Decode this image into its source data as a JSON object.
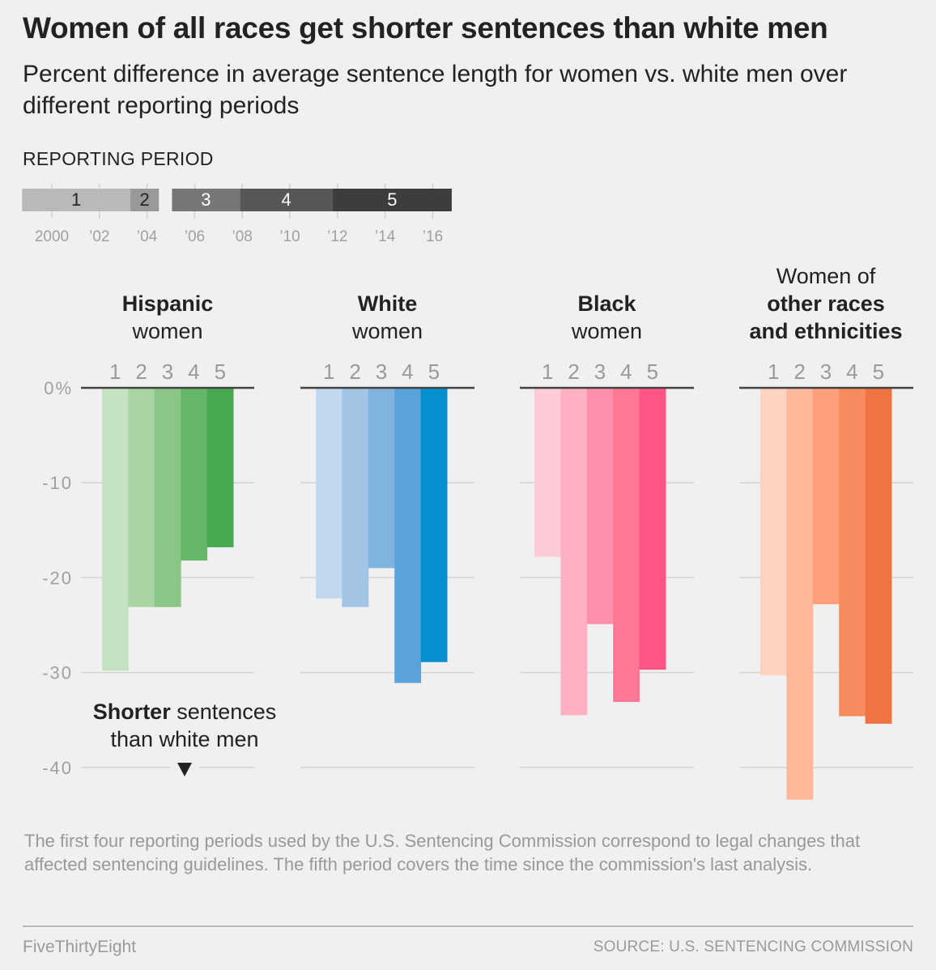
{
  "header": {
    "title": "Women of all races get shorter sentences than white men",
    "subtitle": "Percent difference in average sentence length for women vs. white men over different reporting periods"
  },
  "legend": {
    "title": "REPORTING PERIOD",
    "periods": [
      {
        "label": "1",
        "start": 1998.75,
        "end": 2003.3,
        "color": "#b9b9b9",
        "text_color": "#222222"
      },
      {
        "label": "2",
        "start": 2003.3,
        "end": 2004.5,
        "color": "#999999",
        "text_color": "#222222"
      },
      {
        "label": "3",
        "start": 2005.05,
        "end": 2007.9,
        "color": "#767676",
        "text_color": "#ffffff"
      },
      {
        "label": "4",
        "start": 2007.9,
        "end": 2011.8,
        "color": "#575757",
        "text_color": "#ffffff"
      },
      {
        "label": "5",
        "start": 2011.8,
        "end": 2016.8,
        "color": "#3d3d3d",
        "text_color": "#ffffff"
      }
    ],
    "year_ticks": [
      {
        "year": 2000,
        "label": "2000"
      },
      {
        "year": 2002,
        "label": "’02"
      },
      {
        "year": 2004,
        "label": "’04"
      },
      {
        "year": 2006,
        "label": "’06"
      },
      {
        "year": 2008,
        "label": "’08"
      },
      {
        "year": 2010,
        "label": "’10"
      },
      {
        "year": 2012,
        "label": "’12"
      },
      {
        "year": 2014,
        "label": "’14"
      },
      {
        "year": 2016,
        "label": "’16"
      }
    ]
  },
  "chart_data": {
    "type": "bar",
    "title": "Women of all races get shorter sentences than white men",
    "subtitle": "Percent difference in average sentence length for women vs. white men over different reporting periods",
    "xlabel": "Reporting period",
    "ylabel": "Percent difference",
    "categories": [
      "1",
      "2",
      "3",
      "4",
      "5"
    ],
    "ylim": [
      -40,
      0
    ],
    "yticks": [
      {
        "value": 0,
        "label": "0%"
      },
      {
        "value": -10,
        "label": "-10"
      },
      {
        "value": -20,
        "label": "-20"
      },
      {
        "value": -30,
        "label": "-30"
      },
      {
        "value": -40,
        "label": "-40"
      }
    ],
    "grid": true,
    "series": [
      {
        "name": "Hispanic women",
        "title_lines": [
          {
            "text": "Hispanic",
            "bold": true
          },
          {
            "text": "women",
            "bold": false
          }
        ],
        "values": [
          -29.8,
          -23.1,
          -23.1,
          -18.2,
          -16.8
        ],
        "colors": [
          "#c5e2c3",
          "#a8d5a3",
          "#8ac787",
          "#65b767",
          "#47aa50"
        ]
      },
      {
        "name": "White women",
        "title_lines": [
          {
            "text": "White",
            "bold": true
          },
          {
            "text": "women",
            "bold": false
          }
        ],
        "values": [
          -22.2,
          -23.1,
          -19.0,
          -31.1,
          -28.9
        ],
        "colors": [
          "#c2d8ee",
          "#a2c5e6",
          "#80b4de",
          "#5aa3da",
          "#0790d0"
        ]
      },
      {
        "name": "Black women",
        "title_lines": [
          {
            "text": "Black",
            "bold": true
          },
          {
            "text": "women",
            "bold": false
          }
        ],
        "values": [
          -17.8,
          -34.5,
          -24.9,
          -33.1,
          -29.7
        ],
        "colors": [
          "#ffcbd8",
          "#ffb0c3",
          "#ff90ab",
          "#ff7795",
          "#ff5586"
        ]
      },
      {
        "name": "Women of other races and ethnicities",
        "title_lines": [
          {
            "text": "Women of",
            "bold": false
          },
          {
            "text": "other races",
            "bold": true
          },
          {
            "text": "and ethnicities",
            "bold": true
          }
        ],
        "values": [
          -30.3,
          -43.4,
          -22.8,
          -34.6,
          -35.4
        ],
        "colors": [
          "#ffd3bf",
          "#ffb899",
          "#ffa07a",
          "#f78b5e",
          "#ef7444"
        ]
      }
    ],
    "annotation": {
      "bold": "Shorter",
      "rest_line1": " sentences",
      "line2": "than white men",
      "arrow": "down-triangle"
    }
  },
  "footer": {
    "note": "The first four reporting periods used by the U.S. Sentencing Commission correspond to legal changes that affected sentencing guidelines. The fifth period covers the time since the commission's last analysis.",
    "brand": "FiveThirtyEight",
    "source": "SOURCE: U.S. SENTENCING COMMISSION"
  }
}
